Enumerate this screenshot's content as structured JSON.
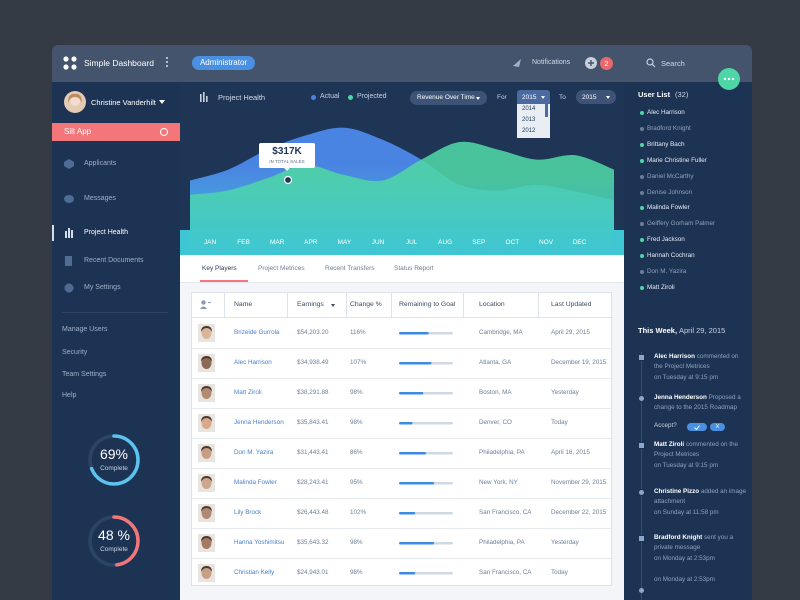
{
  "header": {
    "app_title": "Simple Dashboard",
    "role": "Administrator",
    "notifications": "Notifications",
    "notification_count": "2",
    "search": "Search"
  },
  "sidebar": {
    "user": "Christine Vanderhilt",
    "app": "Silt App",
    "nav": [
      "Applicants",
      "Messages",
      "Project Health",
      "Recent Documents",
      "My Settings"
    ],
    "active_nav": 2,
    "links": [
      "Manage Users",
      "Security",
      "Team Settings",
      "Help"
    ],
    "gauges": [
      {
        "value": 69,
        "label": "69%",
        "caption": "Complete",
        "color": "#5bc3ee"
      },
      {
        "value": 48,
        "label": "48 %",
        "caption": "Complete",
        "color": "#f2767a"
      }
    ]
  },
  "chart": {
    "type": "area",
    "title": "Project Health",
    "categories": [
      "JAN",
      "FEB",
      "MAR",
      "APR",
      "MAY",
      "JUN",
      "JUL",
      "AUG",
      "SEP",
      "OCT",
      "NOV",
      "DEC"
    ],
    "series": [
      {
        "name": "Actual",
        "color": "#4a84e2",
        "values": [
          45,
          55,
          73,
          86,
          93,
          82,
          64,
          41,
          36,
          41,
          35,
          27
        ]
      },
      {
        "name": "Projected",
        "color": "#4fd6a6",
        "values": [
          32,
          36,
          47,
          59,
          50,
          45,
          64,
          80,
          73,
          64,
          68,
          55
        ]
      }
    ],
    "ylim": [
      0,
      100
    ],
    "controls": {
      "metric": "Revenue Over Time",
      "for_label": "For",
      "for_value": "2015",
      "year_options": [
        "2014",
        "2013",
        "2012"
      ],
      "to_label": "To",
      "to_value": "2015"
    },
    "tooltip": {
      "value": "$317K",
      "caption": "IN TOTAL SALES"
    }
  },
  "tabs": {
    "items": [
      "Key Players",
      "Project Metrices",
      "Recent Transfers",
      "Status Report"
    ],
    "active": 0
  },
  "table": {
    "columns": [
      "Name",
      "Earnings",
      "Change %",
      "Remaining to Goal",
      "Location",
      "Last Updated"
    ],
    "rows": [
      {
        "name": "Brizeide Gurrola",
        "earnings": "$54,203.20",
        "change": "116%",
        "goal": 55,
        "location": "Cambridge, MA",
        "updated": "April 29, 2015"
      },
      {
        "name": "Alec Harrison",
        "earnings": "$34,938.49",
        "change": "107%",
        "goal": 60,
        "location": "Atlanta, GA",
        "updated": "December 19, 2015"
      },
      {
        "name": "Matt Ziroli",
        "earnings": "$38,291.88",
        "change": "98%",
        "goal": 45,
        "location": "Boston, MA",
        "updated": "Yesterday"
      },
      {
        "name": "Jenna Henderson",
        "earnings": "$35,843.41",
        "change": "98%",
        "goal": 25,
        "location": "Denver, CO",
        "updated": "Today"
      },
      {
        "name": "Don M. Yazira",
        "earnings": "$31,443.41",
        "change": "86%",
        "goal": 50,
        "location": "Philadelphia, PA",
        "updated": "April 16, 2015"
      },
      {
        "name": "Malinda Fowler",
        "earnings": "$28,243.41",
        "change": "95%",
        "goal": 65,
        "location": "New York, NY",
        "updated": "November 29, 2015"
      },
      {
        "name": "Lily Brock",
        "earnings": "$26,443.48",
        "change": "102%",
        "goal": 30,
        "location": "San Francisco, CA",
        "updated": "December 22, 2015"
      },
      {
        "name": "Hanna Yoshimitsu",
        "earnings": "$35,643.32",
        "change": "98%",
        "goal": 65,
        "location": "Philadelphia, PA",
        "updated": "Yesterday"
      },
      {
        "name": "Christian Kelly",
        "earnings": "$24,943.01",
        "change": "98%",
        "goal": 30,
        "location": "San Francisco, CA",
        "updated": "Today"
      }
    ]
  },
  "user_list": {
    "title": "User List",
    "count": "(32)",
    "users": [
      {
        "name": "Alec Harrison",
        "online": true
      },
      {
        "name": "Bradford Knight",
        "online": false
      },
      {
        "name": "Brittany Bach",
        "online": true
      },
      {
        "name": "Marie Christine Fuller",
        "online": true
      },
      {
        "name": "Daniel McCarthy",
        "online": false
      },
      {
        "name": "Denise Johnson",
        "online": false
      },
      {
        "name": "Malinda Fowler",
        "online": true
      },
      {
        "name": "Geiffery Gorham Palmer",
        "online": false
      },
      {
        "name": "Fred Jackson",
        "online": true
      },
      {
        "name": "Hannah Cochran",
        "online": true
      },
      {
        "name": "Don M. Yazira",
        "online": false
      },
      {
        "name": "Matt Ziroli",
        "online": true
      }
    ]
  },
  "activity": {
    "title": "This Week,",
    "date": "April 29, 2015",
    "items": [
      {
        "user": "Alec Harrison",
        "action": "commented on the Project Metrices",
        "time": "on Tuesday at 9:15 pm"
      },
      {
        "user": "Jenna Henderson",
        "action": "Proposed a change to the 2015 Roadmap",
        "prompt": "Accept?",
        "decline": "X"
      },
      {
        "user": "Matt Ziroli",
        "action": "commented on the Project Metrices",
        "time": "on Tuesday at 9:15 pm"
      },
      {
        "user": "Christine Pizzo",
        "action": "added an image attachment",
        "time": "on Sunday at 11:58 pm"
      },
      {
        "user": "Bradford Knight",
        "action": "sent you a private message",
        "time": "on Monday at 2:53pm"
      },
      {
        "time": "on Monday at 2:53pm"
      }
    ]
  }
}
